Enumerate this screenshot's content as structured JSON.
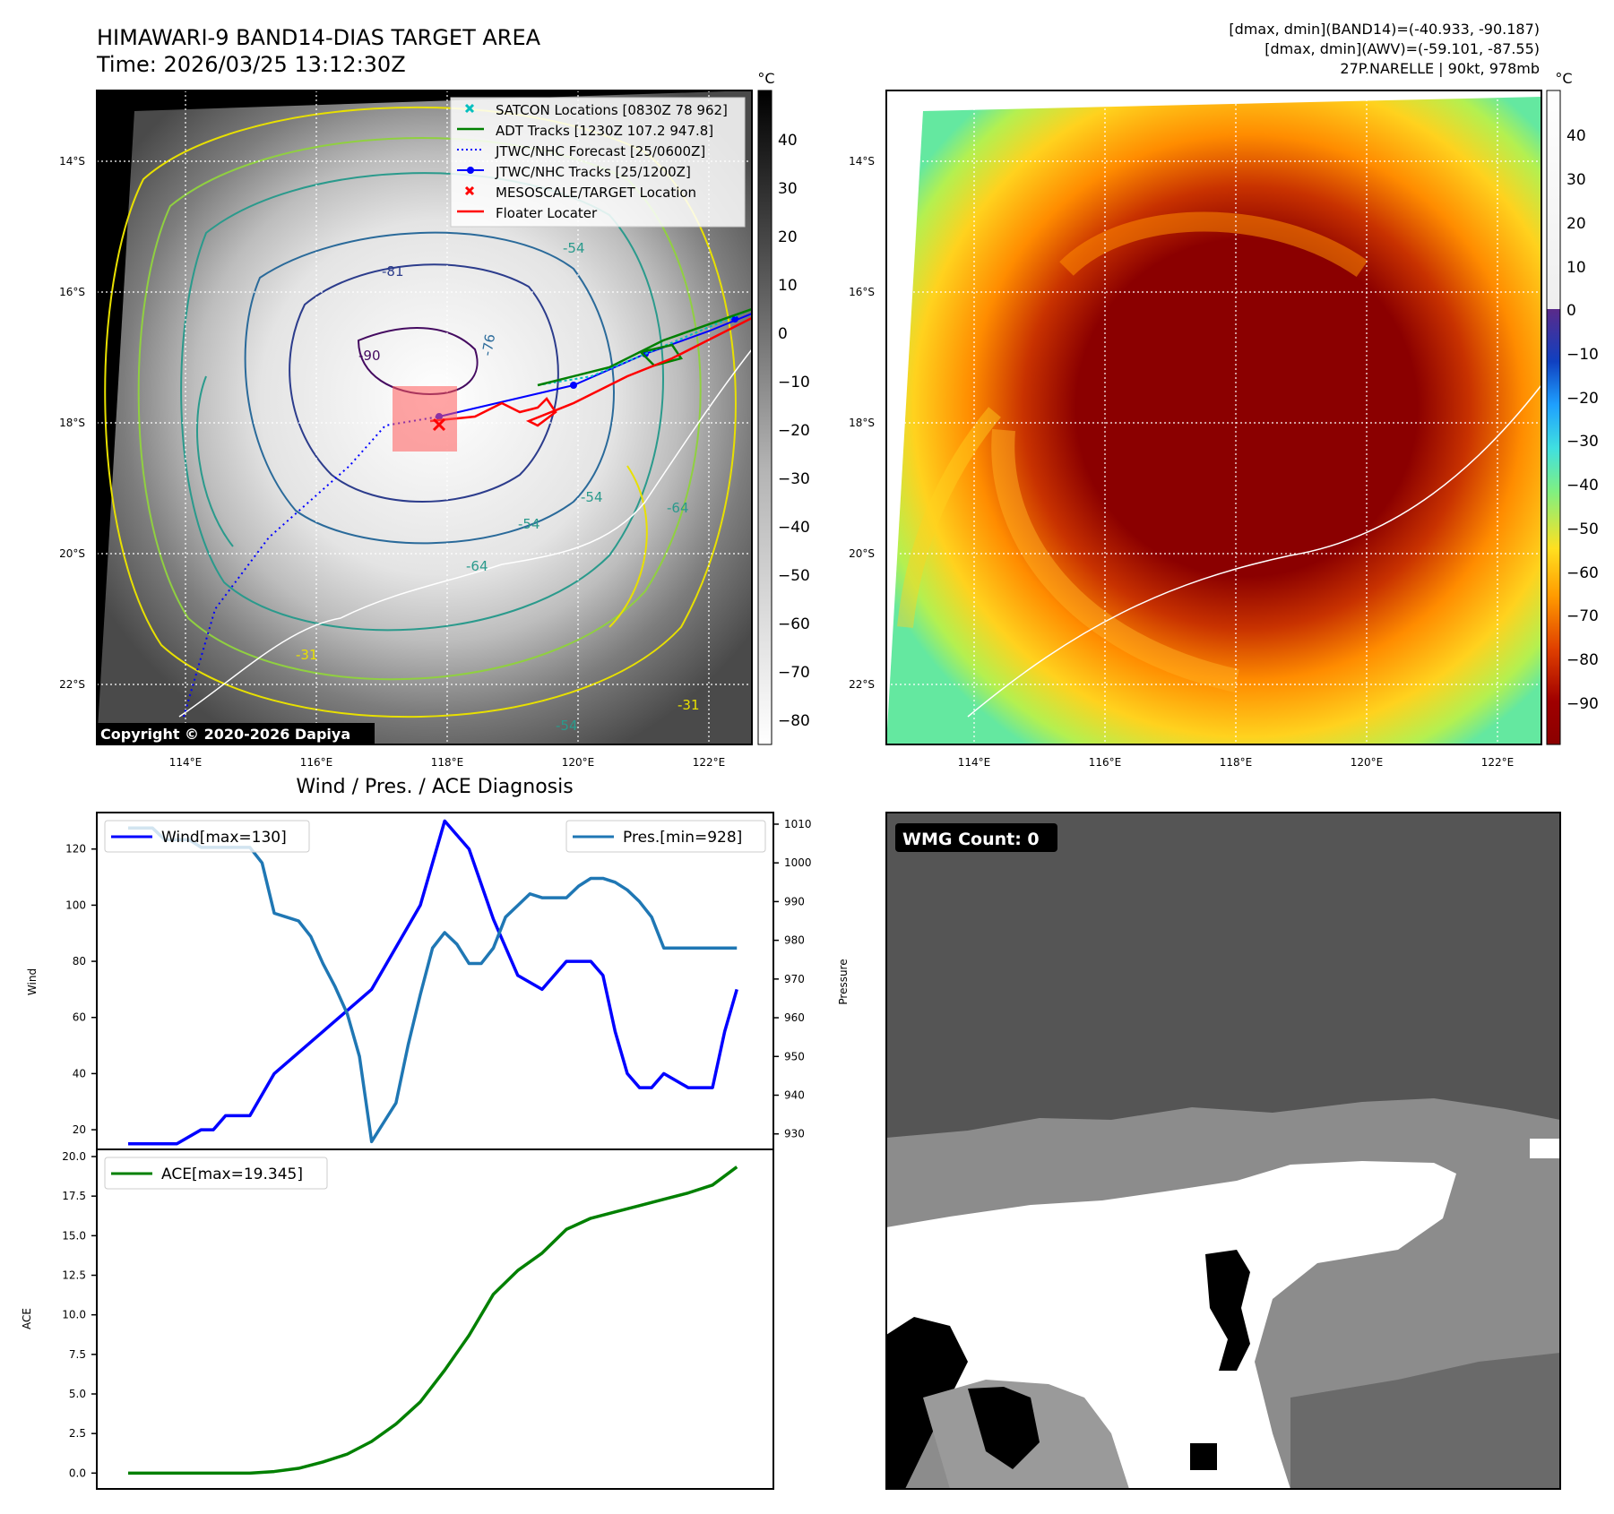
{
  "header": {
    "title_line1": "HIMAWARI-9 BAND14-DIAS TARGET AREA",
    "title_line2": "Time: 2026/03/25 13:12:30Z",
    "info_line1": "[dmax, dmin](BAND14)=(-40.933, -90.187)",
    "info_line2": "[dmax, dmin](AWV)=(-59.101, -87.55)",
    "info_line3": "27P.NARELLE | 90kt, 978mb"
  },
  "colors": {
    "wind": "#0000ff",
    "pressure": "#1f77b4",
    "ace": "#008000",
    "satcon": "#00bfbf",
    "adt": "#008000",
    "jtwc": "#0000ff",
    "target": "#ff0000",
    "floater": "#ff0000"
  },
  "map_common": {
    "lat_labels": [
      "14°S",
      "16°S",
      "18°S",
      "20°S",
      "22°S"
    ],
    "lon_labels": [
      "114°E",
      "116°E",
      "118°E",
      "120°E",
      "122°E"
    ]
  },
  "ir_map": {
    "colorbar_unit": "°C",
    "colorbar_ticks": [
      "40",
      "30",
      "20",
      "10",
      "0",
      "−10",
      "−20",
      "−30",
      "−40",
      "−50",
      "−60",
      "−70",
      "−80"
    ],
    "copyright": "Copyright © 2020-2026 Dapiya",
    "contour_labels": [
      "-90",
      "-81",
      "-76",
      "-54",
      "-54",
      "-54",
      "-64",
      "-64",
      "-31",
      "-54",
      "-31"
    ],
    "legend": [
      {
        "icon": "x-marker-icon",
        "label": "SATCON Locations [0830Z 78 962]"
      },
      {
        "icon": "line-icon",
        "label": "ADT Tracks [1230Z 107.2 947.8]"
      },
      {
        "icon": "dotted-line-icon",
        "label": "JTWC/NHC Forecast [25/0600Z]"
      },
      {
        "icon": "line-dot-icon",
        "label": "JTWC/NHC Tracks [25/1200Z]"
      },
      {
        "icon": "x-marker-icon",
        "label": "MESOSCALE/TARGET Location"
      },
      {
        "icon": "line-icon",
        "label": "Floater Locater"
      }
    ]
  },
  "awv_map": {
    "colorbar_unit": "°C",
    "colorbar_ticks": [
      "40",
      "30",
      "20",
      "10",
      "0",
      "−10",
      "−20",
      "−30",
      "−40",
      "−50",
      "−60",
      "−70",
      "−80",
      "−90"
    ]
  },
  "diag": {
    "title": "Wind / Pres. / ACE Diagnosis"
  },
  "wmg": {
    "label": "WMG Count: 0"
  },
  "chart_data": [
    {
      "type": "line",
      "title": "Wind / Pres. / ACE Diagnosis",
      "ylabel": "Wind",
      "ylabel_right": "Pressure",
      "ylim": [
        13,
        133
      ],
      "ylim_right": [
        926,
        1013
      ],
      "yticks": [
        20,
        40,
        60,
        80,
        100,
        120
      ],
      "yticks_right": [
        930,
        940,
        950,
        960,
        970,
        980,
        990,
        1000,
        1010
      ],
      "legend": [
        "top-left",
        "top-right"
      ],
      "series": [
        {
          "name": "Wind[max=130]",
          "axis": "left",
          "x": [
            0,
            4,
            6,
            7,
            8,
            9,
            10,
            12,
            16,
            20,
            22,
            24,
            26,
            28,
            30,
            32,
            34,
            35,
            36,
            37,
            38,
            39,
            40,
            41,
            42,
            43,
            44,
            46,
            48,
            49,
            50
          ],
          "values": [
            15,
            15,
            20,
            20,
            25,
            25,
            25,
            40,
            55,
            70,
            85,
            100,
            130,
            120,
            95,
            75,
            70,
            75,
            80,
            80,
            80,
            75,
            55,
            40,
            35,
            35,
            40,
            35,
            35,
            55,
            70
          ]
        },
        {
          "name": "Pres.[min=928]",
          "axis": "right",
          "x": [
            0,
            2,
            3,
            4,
            5,
            6,
            7,
            8,
            9,
            10,
            11,
            12,
            13,
            14,
            15,
            16,
            17,
            18,
            19,
            20,
            21,
            22,
            23,
            24,
            25,
            26,
            27,
            28,
            29,
            30,
            31,
            32,
            33,
            34,
            35,
            36,
            37,
            38,
            39,
            40,
            41,
            42,
            43,
            44,
            45,
            46,
            47,
            48,
            49,
            50
          ],
          "values": [
            1009,
            1009,
            1006,
            1006,
            1006,
            1004,
            1004,
            1004,
            1004,
            1004,
            1000,
            987,
            986,
            985,
            981,
            974,
            968,
            961,
            950,
            928,
            933,
            938,
            953,
            966,
            978,
            982,
            979,
            974,
            974,
            978,
            986,
            989,
            992,
            991,
            991,
            991,
            994,
            996,
            996,
            995,
            993,
            990,
            986,
            978,
            978,
            978,
            978,
            978,
            978,
            978
          ]
        }
      ]
    },
    {
      "type": "line",
      "ylabel": "ACE",
      "ylim": [
        -1,
        20
      ],
      "yticks": [
        0.0,
        2.5,
        5.0,
        7.5,
        10.0,
        12.5,
        15.0,
        17.5,
        20.0
      ],
      "legend": "top-left",
      "series": [
        {
          "name": "ACE[max=19.345]",
          "x": [
            0,
            4,
            8,
            10,
            12,
            14,
            16,
            18,
            20,
            22,
            24,
            26,
            28,
            30,
            32,
            34,
            36,
            38,
            40,
            42,
            44,
            46,
            48,
            50
          ],
          "values": [
            0,
            0,
            0,
            0,
            0.1,
            0.3,
            0.7,
            1.2,
            2.0,
            3.1,
            4.5,
            6.5,
            8.7,
            11.3,
            12.8,
            13.9,
            15.4,
            16.1,
            16.5,
            16.9,
            17.3,
            17.7,
            18.2,
            19.345
          ]
        }
      ]
    }
  ]
}
